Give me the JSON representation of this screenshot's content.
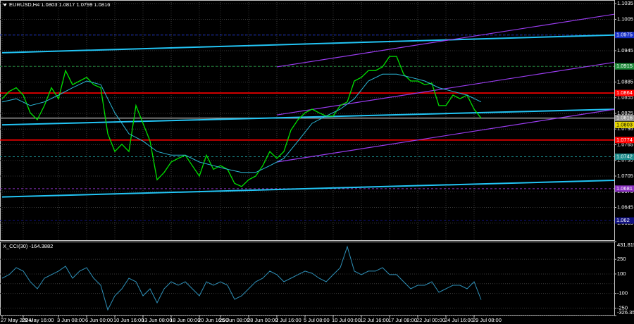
{
  "chart_data": [
    {
      "type": "line",
      "title": "EURUSD,H4 1.0803 1.0817 1.0799 1.0816",
      "categories": [
        "27 May 2024",
        null,
        null,
        "29 May 16:00",
        null,
        null,
        null,
        null,
        "3 Jun 08:00",
        null,
        null,
        null,
        "6 Jun 00:00",
        null,
        null,
        null,
        "10 Jun 16:00",
        null,
        null,
        null,
        "13 Jun 08:00",
        null,
        null,
        null,
        "18 Jun 00:00",
        null,
        null,
        null,
        "20 Jun 16:00",
        null,
        null,
        "25 Jun 08:00",
        null,
        null,
        null,
        "28 Jun 00:00",
        null,
        null,
        null,
        "2 Jul 16:00",
        null,
        null,
        null,
        "5 Jul 08:00",
        null,
        null,
        null,
        "10 Jul 00:00",
        null,
        null,
        null,
        "12 Jul 16:00",
        null,
        null,
        null,
        "17 Jul 08:00",
        null,
        null,
        null,
        "22 Jul 00:00",
        null,
        null,
        null,
        "24 Jul 16:00",
        null,
        null,
        null,
        "29 Jul 08:00",
        null
      ],
      "series": [
        {
          "color": "#00e000",
          "values": [
            1.0853,
            1.0867,
            1.0874,
            1.086,
            1.0826,
            1.0813,
            1.084,
            1.0874,
            1.0853,
            1.0907,
            1.088,
            1.0887,
            1.0894,
            1.088,
            1.0874,
            1.0786,
            1.0752,
            1.0766,
            1.0752,
            1.084,
            1.0806,
            1.0772,
            1.0698,
            1.0712,
            1.0732,
            1.0739,
            1.0745,
            1.0725,
            1.0705,
            1.0745,
            1.0718,
            1.0725,
            1.0718,
            1.0691,
            1.0685,
            1.0698,
            1.0705,
            1.0725,
            1.0752,
            1.0739,
            1.0752,
            1.0793,
            1.0813,
            1.0826,
            1.0833,
            1.0826,
            1.082,
            1.082,
            1.084,
            1.0847,
            1.0887,
            1.0894,
            1.0907,
            1.0907,
            1.0914,
            1.0934,
            1.0934,
            1.09,
            1.0887,
            1.0887,
            1.088,
            1.0883,
            1.084,
            1.084,
            1.086,
            1.0853,
            1.086,
            1.0833,
            1.0816
          ]
        },
        {
          "color": "#2bb8d8",
          "x": [
            0,
            2,
            4,
            6,
            8,
            10,
            12,
            14,
            16,
            18,
            20,
            22,
            24,
            26,
            28,
            30,
            32,
            34,
            36,
            38,
            40,
            42,
            44,
            46,
            48,
            50,
            52,
            54,
            56,
            58,
            60,
            62,
            64,
            66,
            68
          ],
          "values": [
            1.0847,
            1.0853,
            1.084,
            1.0847,
            1.086,
            1.0874,
            1.0887,
            1.088,
            1.0826,
            1.0786,
            1.0772,
            1.0752,
            1.0745,
            1.0745,
            1.0732,
            1.0725,
            1.0718,
            1.0712,
            1.0712,
            1.0725,
            1.0739,
            1.0772,
            1.0806,
            1.082,
            1.0833,
            1.0853,
            1.0887,
            1.09,
            1.09,
            1.0894,
            1.0887,
            1.0874,
            1.0867,
            1.086,
            1.0847
          ]
        }
      ],
      "channels": [
        {
          "color": "#22c4f4",
          "start": [
            0,
            1.0941
          ],
          "end": [
            87,
            1.0975
          ]
        },
        {
          "color": "#22c4f4",
          "start": [
            0,
            1.0803
          ],
          "end": [
            87,
            1.0833
          ]
        },
        {
          "color": "#22c4f4",
          "start": [
            0,
            1.0665
          ],
          "end": [
            87,
            1.0697
          ]
        },
        {
          "color": "#9a3cf0",
          "start": [
            39,
            1.0914
          ],
          "end": [
            87,
            1.1015
          ]
        },
        {
          "color": "#9a3cf0",
          "start": [
            39,
            1.0822
          ],
          "end": [
            87,
            1.0923
          ]
        },
        {
          "color": "#9a3cf0",
          "start": [
            39,
            1.0732
          ],
          "end": [
            87,
            1.0833
          ]
        }
      ],
      "levels": [
        {
          "value": 1.0975,
          "color": "#1830c8",
          "style": "dashed"
        },
        {
          "value": 1.0915,
          "color": "#1e8a3a",
          "style": "dashed"
        },
        {
          "value": 1.0864,
          "color": "#ff0000",
          "style": "solid"
        },
        {
          "value": 1.0816,
          "color": "#909090",
          "style": "solid"
        },
        {
          "value": 1.0803,
          "color": "#e8d800",
          "style": "none"
        },
        {
          "value": 1.0774,
          "color": "#ff0000",
          "style": "solid"
        },
        {
          "value": 1.0742,
          "color": "#1a8a8a",
          "style": "dashed"
        },
        {
          "value": 1.0681,
          "color": "#8a30c0",
          "style": "dashed"
        },
        {
          "value": 1.062,
          "color": "#101080",
          "style": "dashed"
        }
      ],
      "ylim": [
        1.0581,
        1.1042
      ],
      "yticks": [
        1.1035,
        1.1005,
        1.0975,
        1.0945,
        1.0915,
        1.0885,
        1.0855,
        1.0825,
        1.0795,
        1.0765,
        1.0735,
        1.0705,
        1.0675,
        1.0645,
        1.0615
      ],
      "grid": true
    },
    {
      "type": "line",
      "title": "X_CCI(30) -164.3882",
      "series": [
        {
          "color": "#2e90b8",
          "values": [
            56,
            93,
            165,
            129,
            20,
            -52,
            56,
            93,
            129,
            179,
            56,
            129,
            165,
            56,
            -16,
            -268,
            -124,
            -52,
            56,
            20,
            -124,
            -52,
            -196,
            -52,
            20,
            -16,
            20,
            -52,
            -124,
            20,
            -16,
            20,
            -16,
            -160,
            -124,
            -52,
            20,
            56,
            129,
            93,
            20,
            56,
            93,
            129,
            107,
            56,
            20,
            93,
            165,
            380,
            129,
            93,
            129,
            129,
            165,
            93,
            93,
            20,
            -52,
            -16,
            -16,
            20,
            -88,
            -52,
            -16,
            -16,
            -52,
            20,
            -164
          ]
        }
      ],
      "ylim": [
        -326.3597,
        431.8158
      ],
      "yticks": [
        431.8158,
        250,
        100,
        -100,
        -250,
        -326.3597
      ],
      "grid": true
    }
  ]
}
